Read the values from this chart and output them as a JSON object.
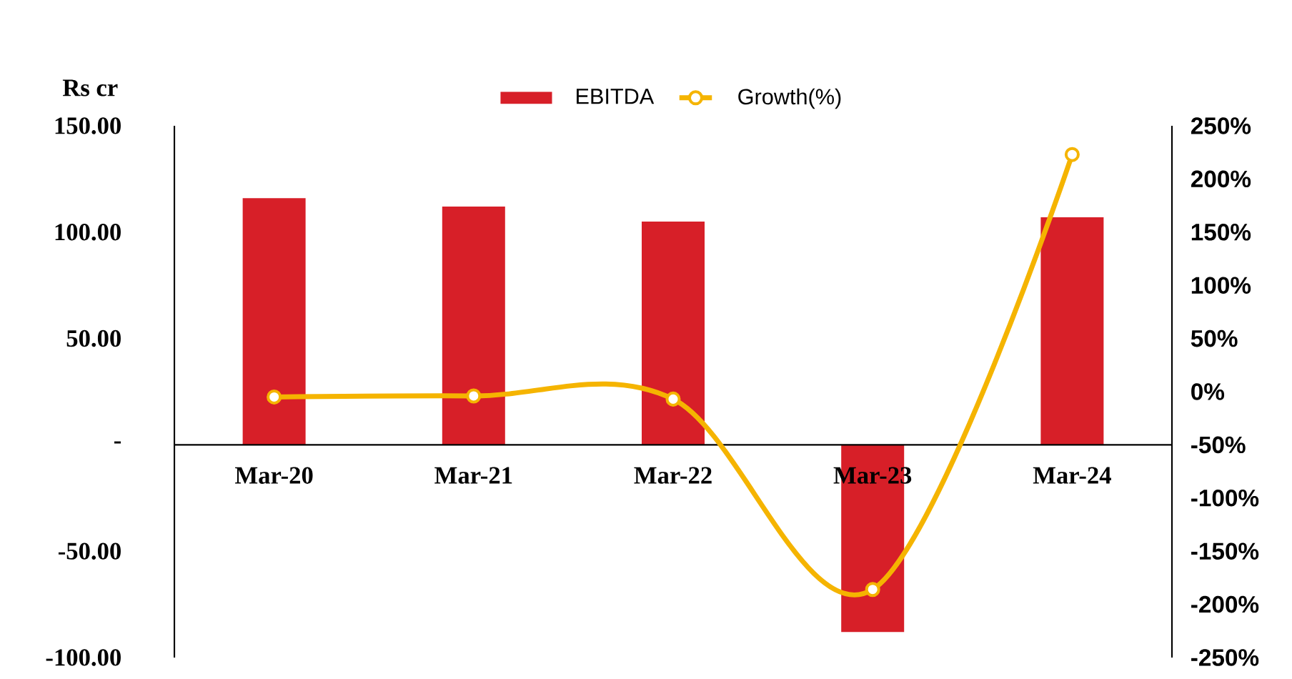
{
  "chart_data": {
    "type": "bar",
    "ylabel": "Rs cr",
    "categories": [
      "Mar-20",
      "Mar-21",
      "Mar-22",
      "Mar-23",
      "Mar-24"
    ],
    "series": [
      {
        "name": "EBITDA",
        "color": "#d71f28",
        "values": [
          116,
          112,
          105,
          -88,
          107
        ]
      },
      {
        "name": "Growth(%)",
        "type": "line",
        "axis": "y2",
        "color": "#f5b400",
        "marker": "circle",
        "values": [
          -5,
          -4,
          -7,
          -186,
          223
        ]
      }
    ],
    "ylim": [
      -100,
      150
    ],
    "yticks": [
      {
        "value": -100,
        "label": "-100.00"
      },
      {
        "value": -50,
        "label": "-50.00"
      },
      {
        "value": 0,
        "label": "-"
      },
      {
        "value": 50,
        "label": "50.00"
      },
      {
        "value": 100,
        "label": "100.00"
      },
      {
        "value": 150,
        "label": "150.00"
      }
    ],
    "y2lim": [
      -250,
      250
    ],
    "y2ticks": [
      {
        "value": -250,
        "label": "-250%"
      },
      {
        "value": -200,
        "label": "-200%"
      },
      {
        "value": -150,
        "label": "-150%"
      },
      {
        "value": -100,
        "label": "-100%"
      },
      {
        "value": -50,
        "label": "-50%"
      },
      {
        "value": 0,
        "label": "0%"
      },
      {
        "value": 50,
        "label": "50%"
      },
      {
        "value": 100,
        "label": "100%"
      },
      {
        "value": 150,
        "label": "150%"
      },
      {
        "value": 200,
        "label": "200%"
      },
      {
        "value": 250,
        "label": "250%"
      }
    ],
    "legend": "top"
  }
}
